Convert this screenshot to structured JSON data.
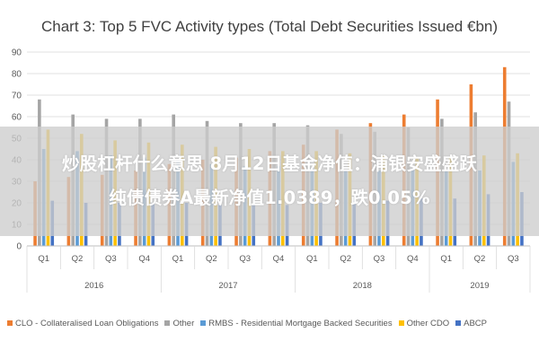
{
  "banner": {
    "line1": "炒股杠杆什么意思 8月12日基金净值：浦银安盛盛跃",
    "line2": "纯债债券A最新净值1.0389，跌0.05%"
  },
  "colors": {
    "CLO": "#ED7D31",
    "Other": "#A5A5A5",
    "RMBS": "#5B9BD5",
    "OtherCDO": "#FFC000",
    "ABCP": "#4472C4",
    "grid": "#D9D9D9",
    "axis_text": "#595959"
  },
  "chart_data": {
    "type": "bar",
    "title": "Chart 3: Top 5 FVC Activity types (Total Debt Securities Issued €bn)",
    "xlabel": "",
    "ylabel": "",
    "ylim": [
      0,
      90
    ],
    "yticks": [
      0,
      10,
      20,
      30,
      40,
      50,
      60,
      70,
      80,
      90
    ],
    "grid": true,
    "legend_position": "bottom",
    "categories": [
      "Q1",
      "Q2",
      "Q3",
      "Q4",
      "Q1",
      "Q2",
      "Q3",
      "Q4",
      "Q1",
      "Q2",
      "Q3",
      "Q4",
      "Q1",
      "Q2",
      "Q3"
    ],
    "groups": [
      {
        "label": "2016",
        "span": 4
      },
      {
        "label": "2017",
        "span": 4
      },
      {
        "label": "2018",
        "span": 4
      },
      {
        "label": "2019",
        "span": 3
      }
    ],
    "series": [
      {
        "name": "CLO - Collateralised Loan Obligations",
        "key": "CLO",
        "values": [
          30,
          32,
          33,
          35,
          38,
          40,
          41,
          44,
          47,
          54,
          57,
          61,
          68,
          75,
          83
        ]
      },
      {
        "name": "Other",
        "key": "Other",
        "values": [
          68,
          61,
          59,
          59,
          61,
          58,
          57,
          57,
          56,
          52,
          53,
          55,
          59,
          62,
          67
        ]
      },
      {
        "name": "RMBS - Residential Mortgage Backed Securities",
        "key": "RMBS",
        "values": [
          45,
          44,
          42,
          41,
          40,
          38,
          37,
          37,
          36,
          35,
          35,
          36,
          35,
          35,
          39
        ]
      },
      {
        "name": "Other CDO",
        "key": "OtherCDO",
        "values": [
          54,
          52,
          49,
          48,
          47,
          46,
          45,
          44,
          44,
          43,
          42,
          41,
          41,
          42,
          43
        ]
      },
      {
        "name": "ABCP",
        "key": "ABCP",
        "values": [
          21,
          20,
          20,
          20,
          20,
          19,
          19,
          19,
          20,
          21,
          21,
          22,
          22,
          24,
          25
        ]
      }
    ]
  }
}
